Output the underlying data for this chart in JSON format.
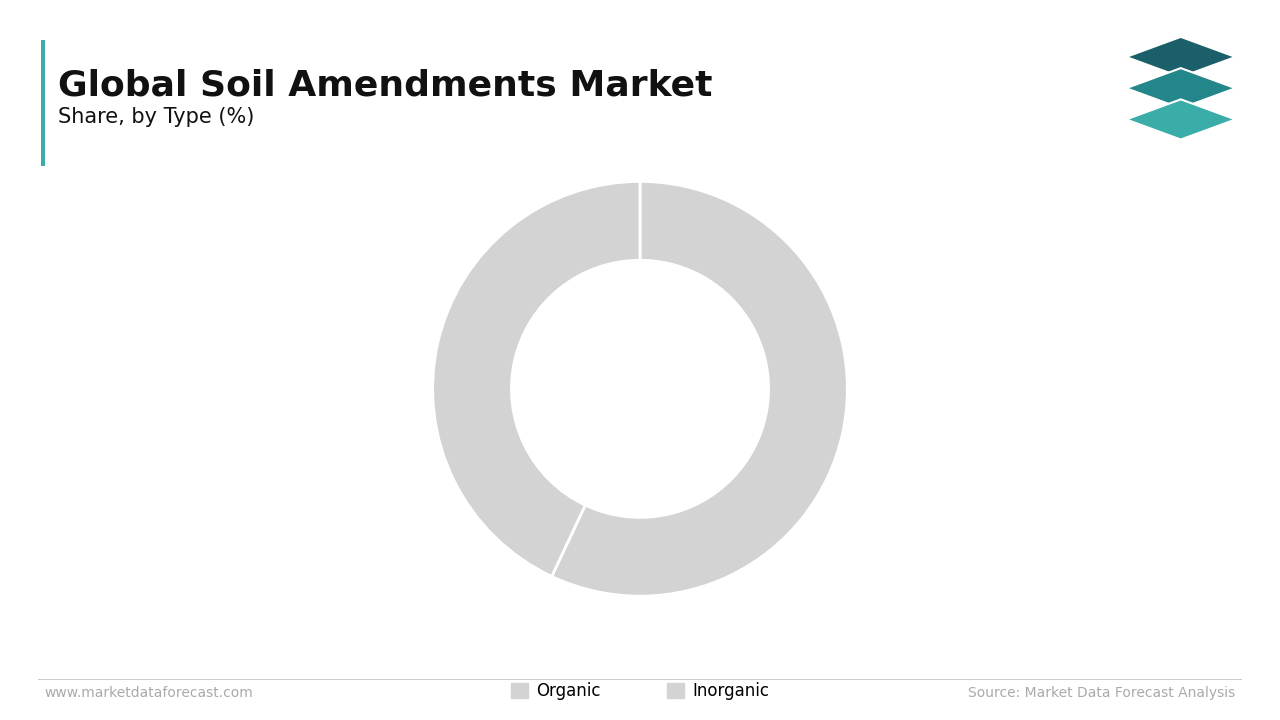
{
  "title": "Global Soil Amendments Market",
  "subtitle": "Share, by Type (%)",
  "title_fontsize": 26,
  "subtitle_fontsize": 15,
  "title_color": "#111111",
  "accent_color": "#3aada8",
  "background_color": "#ffffff",
  "slices": [
    {
      "label": "Organic",
      "value": 57,
      "color": "#d3d3d3"
    },
    {
      "label": "Inorganic",
      "value": 43,
      "color": "#d3d3d3"
    }
  ],
  "wedge_edge_color": "#ffffff",
  "wedge_linewidth": 2.0,
  "donut_width": 0.38,
  "legend_fontsize": 12,
  "footer_left": "www.marketdataforecast.com",
  "footer_right": "Source: Market Data Forecast Analysis",
  "footer_fontsize": 10,
  "footer_color": "#aaaaaa",
  "logo_colors": [
    "#1a5f6a",
    "#22868a",
    "#3aada8"
  ],
  "logo_edge_color": "#ffffff"
}
